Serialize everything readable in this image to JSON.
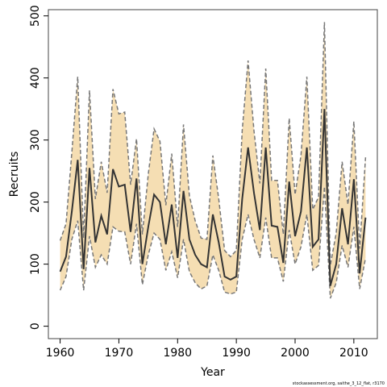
{
  "chart_data": {
    "type": "line",
    "xlabel": "Year",
    "ylabel": "Recruits",
    "xlim": [
      1958,
      2014
    ],
    "ylim": [
      -20,
      510
    ],
    "x_ticks": [
      1960,
      1970,
      1980,
      1990,
      2000,
      2010
    ],
    "y_ticks": [
      0,
      100,
      200,
      300,
      400,
      500
    ],
    "grid": false,
    "band_color": "#f5deb3",
    "line_color": "#333333",
    "bound_color": "#777777",
    "x": [
      1960,
      1961,
      1962,
      1963,
      1964,
      1965,
      1966,
      1967,
      1968,
      1969,
      1970,
      1971,
      1972,
      1973,
      1974,
      1975,
      1976,
      1977,
      1978,
      1979,
      1980,
      1981,
      1982,
      1983,
      1984,
      1985,
      1986,
      1987,
      1988,
      1989,
      1990,
      1991,
      1992,
      1993,
      1994,
      1995,
      1996,
      1997,
      1998,
      1999,
      2000,
      2001,
      2002,
      2003,
      2004,
      2005,
      2006,
      2007,
      2008,
      2009,
      2010,
      2011,
      2012
    ],
    "series": [
      {
        "values": [
          88,
          112,
          185,
          268,
          92,
          255,
          135,
          178,
          148,
          253,
          225,
          228,
          152,
          238,
          100,
          160,
          212,
          200,
          132,
          196,
          110,
          218,
          140,
          115,
          100,
          95,
          180,
          135,
          80,
          75,
          80,
          205,
          288,
          215,
          155,
          288,
          162,
          160,
          102,
          233,
          145,
          185,
          288,
          128,
          140,
          350,
          65,
          100,
          190,
          132,
          237,
          85,
          175
        ]
      },
      {
        "values": [
          58,
          80,
          140,
          170,
          58,
          145,
          95,
          115,
          100,
          160,
          153,
          152,
          100,
          165,
          67,
          115,
          150,
          140,
          90,
          120,
          78,
          140,
          88,
          70,
          60,
          65,
          115,
          90,
          55,
          52,
          55,
          140,
          180,
          140,
          110,
          175,
          110,
          110,
          72,
          155,
          100,
          128,
          180,
          90,
          98,
          225,
          45,
          70,
          130,
          95,
          160,
          60,
          110
        ]
      },
      {
        "values": [
          138,
          165,
          280,
          402,
          142,
          380,
          205,
          265,
          215,
          382,
          342,
          345,
          228,
          302,
          148,
          245,
          318,
          298,
          195,
          278,
          160,
          325,
          210,
          170,
          142,
          140,
          275,
          205,
          122,
          112,
          122,
          315,
          428,
          315,
          230,
          415,
          235,
          235,
          148,
          335,
          212,
          275,
          402,
          188,
          208,
          490,
          98,
          150,
          265,
          196,
          330,
          125,
          272
        ]
      }
    ]
  }
}
